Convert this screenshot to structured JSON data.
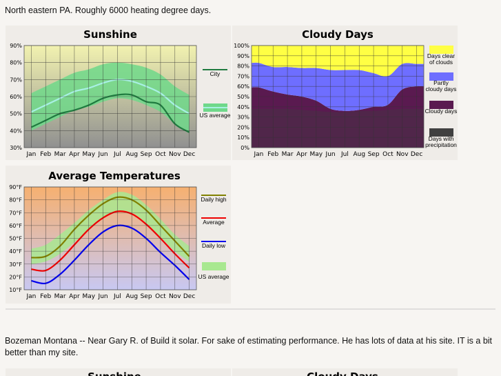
{
  "intro": "North eastern PA. Roughly 6000 heating degree days.",
  "chart_data": [
    {
      "type": "line",
      "title": "Sunshine",
      "categories": [
        "Jan",
        "Feb",
        "Mar",
        "Apr",
        "May",
        "Jun",
        "Jul",
        "Aug",
        "Sep",
        "Oct",
        "Nov",
        "Dec"
      ],
      "ylim": [
        30,
        90
      ],
      "yticks": [
        {
          "value": 30,
          "label": "30%"
        },
        {
          "value": 40,
          "label": "40%"
        },
        {
          "value": 50,
          "label": "50%"
        },
        {
          "value": 60,
          "label": "60%"
        },
        {
          "value": 70,
          "label": "70%"
        },
        {
          "value": 80,
          "label": "80%"
        },
        {
          "value": 90,
          "label": "90%"
        }
      ],
      "grid": true,
      "series": [
        {
          "name": "City",
          "color": "#1f7a3f",
          "values": [
            42,
            46,
            50,
            52,
            55,
            59,
            61,
            61,
            57,
            55,
            44,
            39
          ]
        },
        {
          "name": "US average",
          "color": "#a8f0e4",
          "band_color": "#6fd88a",
          "values": [
            51,
            55,
            59,
            63,
            65,
            68,
            70,
            69,
            66,
            62,
            55,
            50
          ],
          "range_low": [
            40,
            44,
            48,
            52,
            54,
            57,
            59,
            58,
            55,
            51,
            44,
            39
          ],
          "range_high": [
            62,
            66,
            70,
            74,
            76,
            79,
            80,
            79,
            77,
            73,
            66,
            61
          ]
        }
      ]
    },
    {
      "type": "area",
      "title": "Cloudy Days",
      "stacked": true,
      "categories": [
        "Jan",
        "Feb",
        "Mar",
        "Apr",
        "May",
        "Jun",
        "Jul",
        "Aug",
        "Sep",
        "Oct",
        "Nov",
        "Dec"
      ],
      "ylim": [
        0,
        100
      ],
      "yticks": [
        {
          "value": 0,
          "label": "0%"
        },
        {
          "value": 10,
          "label": "10%"
        },
        {
          "value": 20,
          "label": "20%"
        },
        {
          "value": 30,
          "label": "30%"
        },
        {
          "value": 40,
          "label": "40%"
        },
        {
          "value": 50,
          "label": "50%"
        },
        {
          "value": 60,
          "label": "60%"
        },
        {
          "value": 70,
          "label": "70%"
        },
        {
          "value": 80,
          "label": "80%"
        },
        {
          "value": 90,
          "label": "90%"
        },
        {
          "value": 100,
          "label": "100%"
        }
      ],
      "grid": true,
      "series": [
        {
          "name": "Cloudy days",
          "color": "#5a1a50",
          "values": [
            59,
            55,
            52,
            50,
            46,
            38,
            36,
            37,
            40,
            42,
            57,
            60
          ]
        },
        {
          "name": "Partly cloudy days",
          "color": "#6e6eff",
          "values": [
            24,
            24,
            27,
            28,
            32,
            38,
            40,
            39,
            33,
            28,
            25,
            22
          ]
        },
        {
          "name": "Days clear of clouds",
          "color": "#ffff44",
          "values": [
            17,
            21,
            21,
            22,
            22,
            24,
            24,
            24,
            27,
            30,
            18,
            18
          ]
        },
        {
          "name": "Days with precipitation",
          "color": "#404040",
          "stack": false,
          "values": [
            38,
            38,
            38,
            37,
            36,
            35,
            35,
            36,
            36,
            37,
            38,
            38
          ]
        }
      ]
    },
    {
      "type": "line",
      "title": "Average Temperatures",
      "categories": [
        "Jan",
        "Feb",
        "Mar",
        "Apr",
        "May",
        "Jun",
        "Jul",
        "Aug",
        "Sep",
        "Oct",
        "Nov",
        "Dec"
      ],
      "ylim": [
        10,
        90
      ],
      "yticks": [
        {
          "value": 10,
          "label": "10°F"
        },
        {
          "value": 20,
          "label": "20°F"
        },
        {
          "value": 30,
          "label": "30°F"
        },
        {
          "value": 40,
          "label": "40°F"
        },
        {
          "value": 50,
          "label": "50°F"
        },
        {
          "value": 60,
          "label": "60°F"
        },
        {
          "value": 70,
          "label": "70°F"
        },
        {
          "value": 80,
          "label": "80°F"
        },
        {
          "value": 90,
          "label": "90°F"
        }
      ],
      "grid": true,
      "series": [
        {
          "name": "Daily high",
          "color": "#808000",
          "values": [
            35,
            36,
            44,
            57,
            68,
            77,
            82,
            80,
            72,
            60,
            48,
            36
          ]
        },
        {
          "name": "Average",
          "color": "#ee0000",
          "values": [
            26,
            25,
            33,
            45,
            57,
            66,
            71,
            69,
            61,
            50,
            38,
            27
          ]
        },
        {
          "name": "Daily low",
          "color": "#0000ee",
          "values": [
            17,
            15,
            22,
            33,
            45,
            55,
            60,
            58,
            50,
            39,
            29,
            18
          ]
        },
        {
          "name": "US average",
          "band_color": "#a8e890",
          "range_low": [
            30,
            32,
            38,
            47,
            57,
            66,
            71,
            70,
            62,
            51,
            40,
            32
          ],
          "range_high": [
            42,
            45,
            53,
            62,
            72,
            80,
            86,
            84,
            76,
            65,
            53,
            44
          ]
        }
      ]
    }
  ],
  "section2": {
    "text": "Bozeman Montana -- Near Gary R. of Build it solar. For sake of estimating performance. He has lots of data at his site. IT is a bit better than my site.",
    "titles": [
      "Sunshine",
      "Cloudy Days"
    ]
  }
}
